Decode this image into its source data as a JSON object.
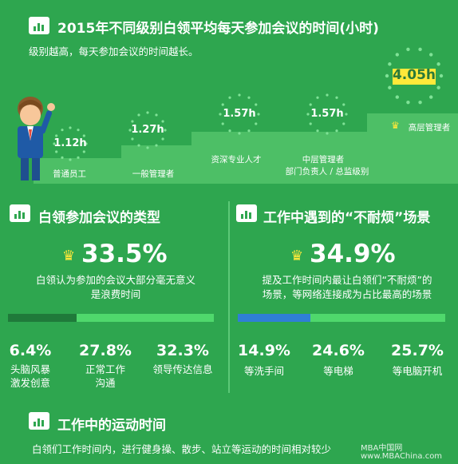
{
  "header": {
    "title": "2015年不同级别白领平均每天参加会议的时间(小时)",
    "subtitle": "级别越高，每天参加会议的时间越长。",
    "icon": "bar-chart-icon"
  },
  "chart_data": [
    {
      "type": "bar",
      "title": "2015年不同级别白领平均每天参加会议的时间(小时)",
      "categories": [
        "普通员工",
        "一般管理者",
        "资深专业人才",
        "中层管理者 部门负责人 / 总监级别",
        "高层管理者"
      ],
      "values": [
        1.12,
        1.27,
        1.57,
        1.57,
        4.05
      ],
      "value_labels": [
        "1.12h",
        "1.27h",
        "1.57h",
        "1.57h",
        "4.05h"
      ],
      "unit": "h"
    },
    {
      "type": "bar",
      "title": "白领参加会议的类型",
      "categories": [
        "白领认为参加的会议大部分毫无意义是浪费时间",
        "头脑风暴激发创意",
        "正常工作沟通",
        "领导传达信息"
      ],
      "values": [
        33.5,
        6.4,
        27.8,
        32.3
      ],
      "unit": "%"
    },
    {
      "type": "bar",
      "title": "工作中遇到的“不耐烦”场景",
      "categories": [
        "提及工作时间内最让白领们“不耐烦”的场景，等网络连接成为占比最高的场景",
        "等洗手间",
        "等电梯",
        "等电脑开机"
      ],
      "values": [
        34.9,
        14.9,
        24.6,
        25.7
      ],
      "unit": "%"
    }
  ],
  "levels": {
    "labels": [
      "普通员工",
      "一般管理者",
      "资深专业人才",
      "中层管理者",
      "高层管理者"
    ],
    "sublabel_mid": "部门负责人 / 总监级别",
    "values": [
      "1.12h",
      "1.27h",
      "1.57h",
      "1.57h",
      "4.05h"
    ],
    "top_value_bg": "#ffe93a"
  },
  "meeting": {
    "title": "白领参加会议的类型",
    "headline": "33.5%",
    "headline_value": 0.335,
    "desc_line1": "白领认为参加的会议大部分毫无意义",
    "desc_line2": "是浪费时间",
    "bar_color": "#1f7a3a",
    "items": [
      {
        "pct": "6.4%",
        "l1": "头脑风暴",
        "l2": "激发创意"
      },
      {
        "pct": "27.8%",
        "l1": "正常工作",
        "l2": "沟通"
      },
      {
        "pct": "32.3%",
        "l1": "领导传达信息",
        "l2": ""
      }
    ]
  },
  "impatient": {
    "title": "工作中遇到的“不耐烦”场景",
    "headline": "34.9%",
    "headline_value": 0.349,
    "desc_line1": "提及工作时间内最让白领们“不耐烦”的",
    "desc_line2": "场景，等网络连接成为占比最高的场景",
    "bar_color": "#2f7fd6",
    "items": [
      {
        "pct": "14.9%",
        "l1": "等洗手间"
      },
      {
        "pct": "24.6%",
        "l1": "等电梯"
      },
      {
        "pct": "25.7%",
        "l1": "等电脑开机"
      }
    ]
  },
  "exercise": {
    "title": "工作中的运动时间",
    "desc": "白领们工作时间内，进行健身操、散步、站立等运动的时间相对较少"
  },
  "watermark": {
    "line1": "MBA中国网",
    "line2": "www.MBAChina.com"
  },
  "colors": {
    "background": "#2ea64f",
    "steps": "#4dbf66",
    "crown": "#ffe93a"
  }
}
